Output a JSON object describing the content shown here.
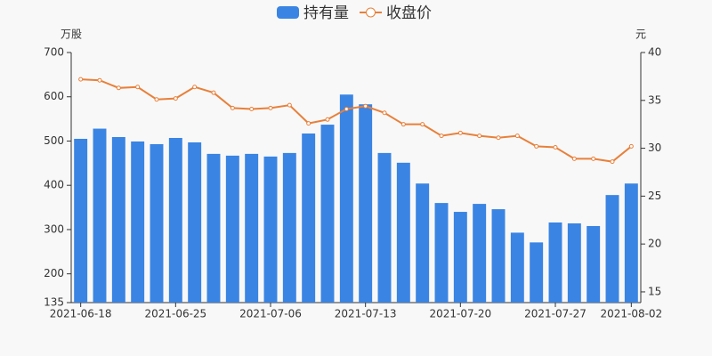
{
  "chart_data": {
    "type": "bar-line",
    "ylabel": "万股",
    "y2label": "元",
    "categories": [
      "2021-06-18",
      null,
      null,
      null,
      null,
      "2021-06-25",
      null,
      null,
      null,
      null,
      "2021-07-06",
      null,
      null,
      null,
      null,
      "2021-07-13",
      null,
      null,
      null,
      null,
      "2021-07-20",
      null,
      null,
      null,
      null,
      "2021-07-27",
      null,
      null,
      null,
      "2021-08-02"
    ],
    "series": [
      {
        "name": "持有量",
        "type": "bar",
        "color": "#3a84e3",
        "values": [
          505,
          528,
          509,
          499,
          493,
          507,
          497,
          471,
          467,
          471,
          465,
          473,
          517,
          537,
          605,
          583,
          473,
          451,
          404,
          360,
          340,
          358,
          346,
          293,
          271,
          316,
          314,
          308,
          378,
          404
        ]
      },
      {
        "name": "收盘价",
        "type": "line",
        "axis": "y2",
        "color": "#e8803a",
        "values": [
          37.2,
          37.1,
          36.3,
          36.4,
          35.1,
          35.2,
          36.4,
          35.8,
          34.2,
          34.1,
          34.2,
          34.5,
          32.6,
          33.0,
          34.1,
          34.4,
          33.7,
          32.5,
          32.5,
          31.3,
          31.6,
          31.3,
          31.1,
          31.3,
          30.2,
          30.1,
          28.9,
          28.9,
          28.6,
          30.2
        ]
      }
    ],
    "ylim": [
      135,
      700
    ],
    "yticks": [
      135,
      200,
      300,
      400,
      500,
      600,
      700
    ],
    "y2lim": [
      13.88,
      40
    ],
    "y2ticks": [
      15,
      20,
      25,
      30,
      35,
      40
    ]
  }
}
